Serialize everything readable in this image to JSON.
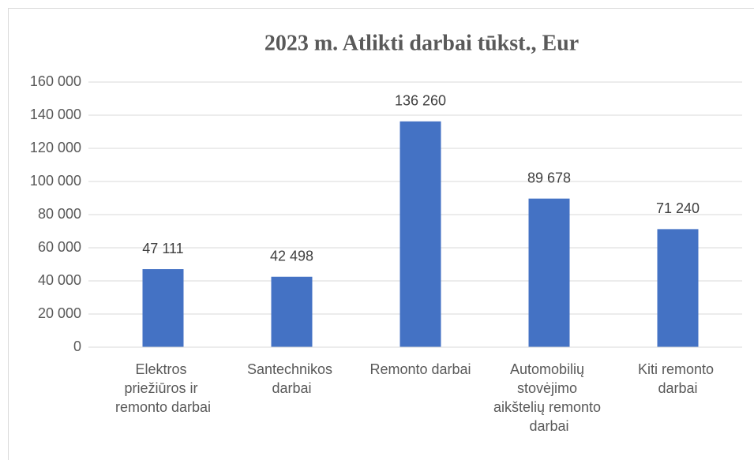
{
  "chart_data": {
    "type": "bar",
    "title": "2023 m. Atlikti darbai tūkst., Eur",
    "categories": [
      "Elektros priežiūros ir remonto darbai",
      "Santechnikos darbai",
      "Remonto darbai",
      "Automobilių stovėjimo aikštelių remonto darbai",
      "Kiti remonto darbai"
    ],
    "values": [
      47111,
      42498,
      136260,
      89678,
      71240
    ],
    "value_labels": [
      "47 111",
      "42 498",
      "136 260",
      "89 678",
      "71 240"
    ],
    "color": "#4472c4",
    "ylim": [
      0,
      160000
    ],
    "yticks": [
      0,
      {
        "value": 20000,
        "label": "20 000"
      },
      {
        "value": 40000,
        "label": "40 000"
      },
      {
        "value": 60000,
        "label": "60 000"
      },
      {
        "value": 80000,
        "label": "80 000"
      },
      {
        "value": 100000,
        "label": "100 000"
      },
      {
        "value": 120000,
        "label": "120 000"
      },
      {
        "value": 140000,
        "label": "140 000"
      },
      {
        "value": 160000,
        "label": "160 000"
      }
    ],
    "grid": true
  }
}
